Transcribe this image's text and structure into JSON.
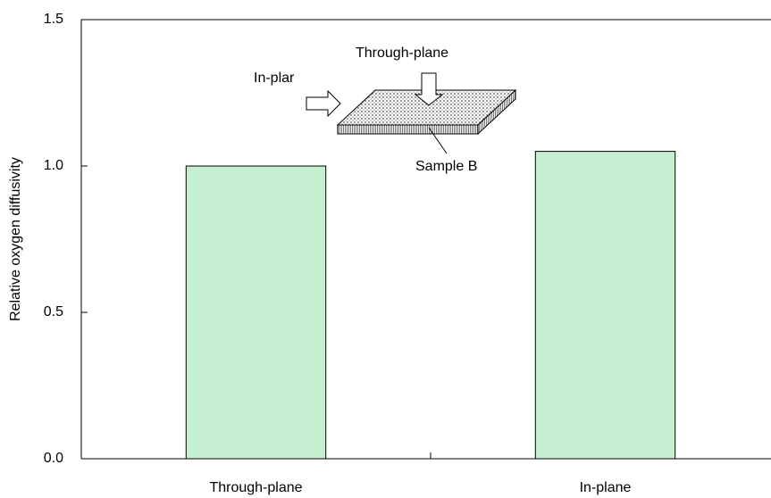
{
  "chart_data": {
    "type": "bar",
    "y_label": "Relative oxygen diffusivity",
    "categories": [
      "Through-plane",
      "In-plane"
    ],
    "values": [
      1.0,
      1.05
    ],
    "color": "#c6efd1",
    "ylim": [
      0,
      1.5
    ],
    "yticks": [
      {
        "value": 0,
        "label": "0.0"
      },
      {
        "value": 0.5,
        "label": "0.5"
      },
      {
        "value": 1,
        "label": "1.0"
      },
      {
        "value": 1.5,
        "label": "1.5"
      }
    ],
    "annotations": [
      "Through-plane",
      "In-plar",
      "Sample B"
    ]
  }
}
